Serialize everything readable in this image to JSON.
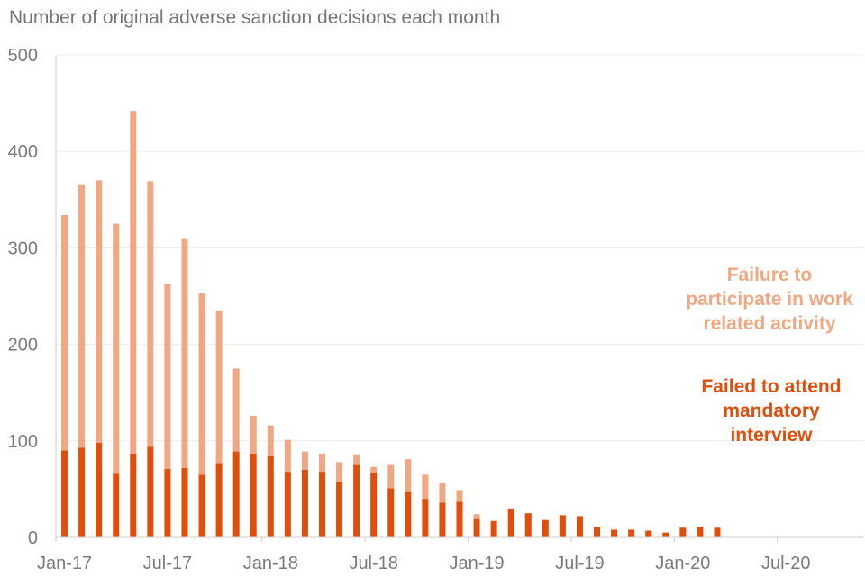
{
  "title": "Number of original adverse sanction decisions each month",
  "colors": {
    "series1": "#e04e0c",
    "series2": "#f0a882",
    "axis_text": "#7a7a7a",
    "grid": "#ececec",
    "axis": "#cccccc"
  },
  "chart_data": {
    "type": "bar",
    "stacked": true,
    "title": "Number of original adverse sanction decisions each month",
    "xlabel": "",
    "ylabel": "",
    "ylim": [
      0,
      500
    ],
    "yticks": [
      0,
      100,
      200,
      300,
      400,
      500
    ],
    "grid": true,
    "legend": "right, as labels",
    "x_tick_labels": [
      "Jan-17",
      "Jul-17",
      "Jan-18",
      "Jul-18",
      "Jan-19",
      "Jul-19",
      "Jan-20",
      "Jul-20"
    ],
    "x_tick_index": [
      0,
      6,
      12,
      18,
      24,
      30,
      36,
      42
    ],
    "x_count": 47,
    "categories": [
      "Jan-17",
      "Feb-17",
      "Mar-17",
      "Apr-17",
      "May-17",
      "Jun-17",
      "Jul-17",
      "Aug-17",
      "Sep-17",
      "Oct-17",
      "Nov-17",
      "Dec-17",
      "Jan-18",
      "Feb-18",
      "Mar-18",
      "Apr-18",
      "May-18",
      "Jun-18",
      "Jul-18",
      "Aug-18",
      "Sep-18",
      "Oct-18",
      "Nov-18",
      "Dec-18",
      "Jan-19",
      "Feb-19",
      "Mar-19",
      "Apr-19",
      "May-19",
      "Jun-19",
      "Jul-19",
      "Aug-19",
      "Sep-19",
      "Oct-19",
      "Nov-19",
      "Dec-19",
      "Jan-20",
      "Feb-20",
      "Mar-20"
    ],
    "series": [
      {
        "name": "Failed to attend mandatory interview",
        "values": [
          90,
          93,
          98,
          66,
          87,
          94,
          71,
          72,
          65,
          77,
          89,
          87,
          84,
          68,
          70,
          68,
          58,
          75,
          67,
          51,
          47,
          40,
          36,
          37,
          19,
          17,
          30,
          25,
          18,
          23,
          22,
          11,
          8,
          8,
          7,
          5,
          10,
          11,
          10
        ]
      },
      {
        "name": "Failure to participate in work related activity",
        "values": [
          244,
          272,
          272,
          259,
          355,
          275,
          192,
          237,
          188,
          158,
          86,
          39,
          32,
          33,
          19,
          19,
          20,
          11,
          6,
          24,
          34,
          25,
          20,
          12,
          5,
          0,
          0,
          0,
          0,
          0,
          0,
          0,
          0,
          0,
          0,
          0,
          0,
          0,
          0
        ]
      }
    ]
  },
  "legend": {
    "series2_label": "Failure to participate in work related activity",
    "series1_label": "Failed to attend mandatory interview"
  }
}
